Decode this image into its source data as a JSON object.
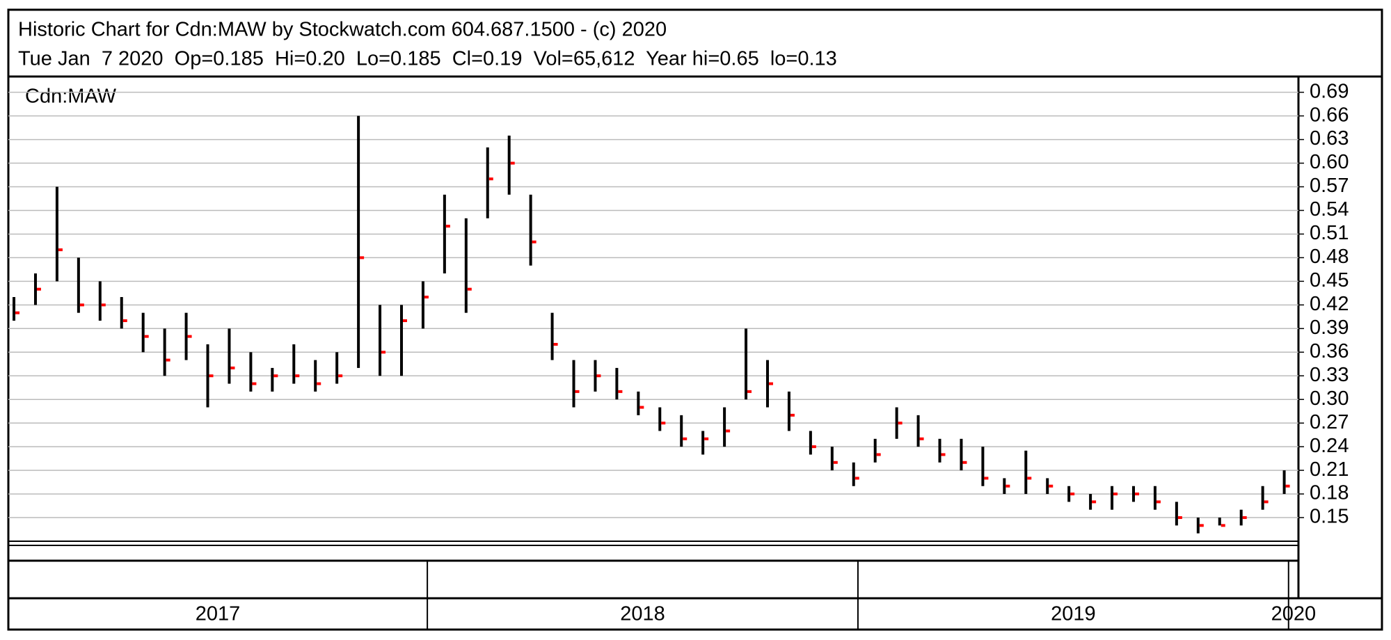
{
  "chart_data": {
    "type": "ohlc",
    "title": "Historic Chart for Cdn:MAW by Stockwatch.com 604.687.1500 - (c) 2020",
    "subtitle": "Tue Jan  7 2020  Op=0.185  Hi=0.20  Lo=0.185  Cl=0.19  Vol=65,612  Year hi=0.65  lo=0.13",
    "x": [
      2017.04,
      2017.09,
      2017.14,
      2017.19,
      2017.24,
      2017.29,
      2017.34,
      2017.39,
      2017.44,
      2017.49,
      2017.54,
      2017.59,
      2017.64,
      2017.69,
      2017.74,
      2017.79,
      2017.84,
      2017.89,
      2017.94,
      2017.99,
      2018.04,
      2018.09,
      2018.14,
      2018.19,
      2018.24,
      2018.29,
      2018.34,
      2018.39,
      2018.44,
      2018.49,
      2018.54,
      2018.59,
      2018.64,
      2018.69,
      2018.74,
      2018.79,
      2018.84,
      2018.89,
      2018.94,
      2018.99,
      2019.04,
      2019.09,
      2019.14,
      2019.19,
      2019.24,
      2019.29,
      2019.34,
      2019.39,
      2019.44,
      2019.49,
      2019.54,
      2019.59,
      2019.64,
      2019.69,
      2019.74,
      2019.79,
      2019.84,
      2019.89,
      2019.94,
      2019.99
    ],
    "series": [
      {
        "name": "Cdn:MAW",
        "color": "#000000",
        "close_color": "#ff0000",
        "high": [
          0.43,
          0.46,
          0.57,
          0.48,
          0.45,
          0.43,
          0.41,
          0.39,
          0.41,
          0.37,
          0.39,
          0.36,
          0.34,
          0.37,
          0.35,
          0.36,
          0.66,
          0.42,
          0.42,
          0.45,
          0.56,
          0.53,
          0.62,
          0.635,
          0.56,
          0.41,
          0.35,
          0.35,
          0.34,
          0.31,
          0.29,
          0.28,
          0.26,
          0.29,
          0.39,
          0.35,
          0.31,
          0.26,
          0.24,
          0.22,
          0.25,
          0.29,
          0.28,
          0.25,
          0.25,
          0.24,
          0.2,
          0.235,
          0.2,
          0.19,
          0.18,
          0.19,
          0.19,
          0.19,
          0.17,
          0.15,
          0.15,
          0.16,
          0.19,
          0.21
        ],
        "low": [
          0.4,
          0.42,
          0.45,
          0.41,
          0.4,
          0.39,
          0.36,
          0.33,
          0.35,
          0.29,
          0.32,
          0.31,
          0.31,
          0.32,
          0.31,
          0.32,
          0.34,
          0.33,
          0.33,
          0.39,
          0.46,
          0.41,
          0.53,
          0.56,
          0.47,
          0.35,
          0.29,
          0.31,
          0.3,
          0.28,
          0.26,
          0.24,
          0.23,
          0.24,
          0.3,
          0.29,
          0.26,
          0.23,
          0.21,
          0.19,
          0.22,
          0.25,
          0.24,
          0.22,
          0.21,
          0.19,
          0.18,
          0.18,
          0.18,
          0.17,
          0.16,
          0.16,
          0.17,
          0.16,
          0.14,
          0.13,
          0.14,
          0.14,
          0.16,
          0.18
        ],
        "close": [
          0.41,
          0.44,
          0.49,
          0.42,
          0.42,
          0.4,
          0.38,
          0.35,
          0.38,
          0.33,
          0.34,
          0.32,
          0.33,
          0.33,
          0.32,
          0.33,
          0.48,
          0.36,
          0.4,
          0.43,
          0.52,
          0.44,
          0.58,
          0.6,
          0.5,
          0.37,
          0.31,
          0.33,
          0.31,
          0.29,
          0.27,
          0.25,
          0.25,
          0.26,
          0.31,
          0.32,
          0.28,
          0.24,
          0.22,
          0.2,
          0.23,
          0.27,
          0.25,
          0.23,
          0.22,
          0.2,
          0.19,
          0.2,
          0.19,
          0.18,
          0.17,
          0.18,
          0.18,
          0.17,
          0.15,
          0.14,
          0.14,
          0.15,
          0.17,
          0.19
        ]
      }
    ],
    "ylim": [
      0.12,
      0.71
    ],
    "yticks": [
      0.15,
      0.18,
      0.21,
      0.24,
      0.27,
      {
        "value": 0.3,
        "label": "0.30"
      },
      0.33,
      0.36,
      0.39,
      0.42,
      0.45,
      0.48,
      0.51,
      0.54,
      0.57,
      {
        "value": 0.6,
        "label": "0.60"
      },
      0.63,
      0.66,
      0.69
    ],
    "xlim": [
      2017.027,
      2020.023
    ],
    "xticks": [
      2017,
      2018,
      2019,
      2020
    ],
    "grid": true
  }
}
